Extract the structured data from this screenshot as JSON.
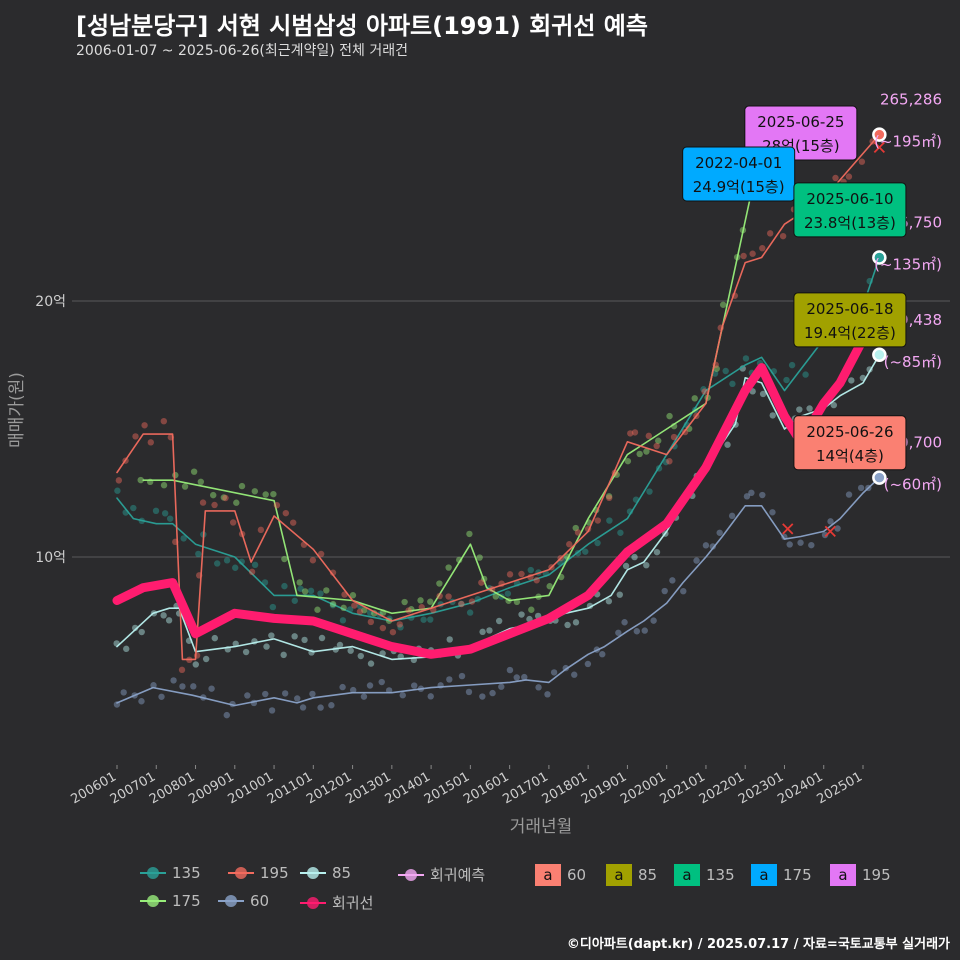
{
  "header": {
    "title": "[성남분당구] 서현 시범삼성 아파트(1991) 회귀선 예측",
    "subtitle": "2006-01-07 ~ 2025-06-26(최근계약일) 전체 거래건",
    "caption": "©디아파트(dapt.kr) / 2025.07.17 / 자료=국토교통부 실거래가"
  },
  "colors": {
    "s135": "#2aa198",
    "s195": "#f26b5e",
    "s85": "#b8f0ee",
    "s175": "#98ee7a",
    "s60": "#8aa2c8",
    "regression": "#ff1c6f",
    "forecast": "#f3a8f3",
    "box60": "#fa8072",
    "box85": "#a1a100",
    "box135": "#00c080",
    "box175": "#00aaff",
    "box195": "#e377f5"
  },
  "legend": {
    "lines": [
      {
        "label": "135",
        "color": "#2aa198"
      },
      {
        "label": "195",
        "color": "#f26b5e"
      },
      {
        "label": "85",
        "color": "#b8f0ee"
      },
      {
        "label": "회귀예측",
        "color": "#f3a8f3"
      },
      {
        "label": "175",
        "color": "#98ee7a"
      },
      {
        "label": "60",
        "color": "#8aa2c8"
      },
      {
        "label": "회귀선",
        "color": "#ff1c6f"
      }
    ],
    "boxes": [
      {
        "glyph": "a",
        "label": "60",
        "color": "#fa8072"
      },
      {
        "glyph": "a",
        "label": "85",
        "color": "#a1a100"
      },
      {
        "glyph": "a",
        "label": "135",
        "color": "#00c080"
      },
      {
        "glyph": "a",
        "label": "175",
        "color": "#00aaff"
      },
      {
        "glyph": "a",
        "label": "195",
        "color": "#e377f5"
      }
    ]
  },
  "chart_data": {
    "type": "line",
    "xlabel": "거래년월",
    "ylabel": "매매가(원)",
    "x_range": [
      "2006-01",
      "2025-07"
    ],
    "y_range_eok": [
      0,
      29
    ],
    "yticks": [
      {
        "value": 10,
        "label": "10억"
      },
      {
        "value": 20,
        "label": "20억"
      }
    ],
    "xticks": [
      "200601",
      "200701",
      "200801",
      "200901",
      "201001",
      "201101",
      "201201",
      "201301",
      "201401",
      "201501",
      "201601",
      "201701",
      "201801",
      "201901",
      "202001",
      "202101",
      "202201",
      "202301",
      "202401",
      "202501"
    ],
    "grid": true,
    "series": [
      {
        "name": "60",
        "color": "#8aa2c8",
        "points": [
          [
            "2006-01",
            4.3
          ],
          [
            "2006-12",
            4.9
          ],
          [
            "2007-12",
            4.6
          ],
          [
            "2009-01",
            4.2
          ],
          [
            "2010-01",
            4.5
          ],
          [
            "2010-08",
            4.3
          ],
          [
            "2011-01",
            4.5
          ],
          [
            "2012-01",
            4.7
          ],
          [
            "2013-01",
            4.7
          ],
          [
            "2014-01",
            4.9
          ],
          [
            "2015-01",
            5.0
          ],
          [
            "2016-01",
            5.1
          ],
          [
            "2016-06",
            5.2
          ],
          [
            "2017-01",
            5.1
          ],
          [
            "2017-06",
            5.6
          ],
          [
            "2018-01",
            6.2
          ],
          [
            "2018-06",
            6.5
          ],
          [
            "2019-01",
            7.1
          ],
          [
            "2019-06",
            7.5
          ],
          [
            "2020-01",
            8.2
          ],
          [
            "2020-06",
            9.0
          ],
          [
            "2021-01",
            10.0
          ],
          [
            "2021-06",
            10.8
          ],
          [
            "2022-01",
            12.0
          ],
          [
            "2022-06",
            12.0
          ],
          [
            "2023-01",
            10.7
          ],
          [
            "2023-06",
            10.8
          ],
          [
            "2024-01",
            11.0
          ],
          [
            "2024-06",
            11.5
          ],
          [
            "2025-01",
            12.5
          ],
          [
            "2025-06",
            13.1
          ]
        ]
      },
      {
        "name": "85",
        "color": "#b8f0ee",
        "points": [
          [
            "2006-01",
            6.5
          ],
          [
            "2006-12",
            7.8
          ],
          [
            "2007-05",
            8.0
          ],
          [
            "2007-08",
            8.0
          ],
          [
            "2008-01",
            6.3
          ],
          [
            "2009-01",
            6.5
          ],
          [
            "2010-01",
            6.8
          ],
          [
            "2011-01",
            6.3
          ],
          [
            "2012-01",
            6.5
          ],
          [
            "2013-01",
            6.0
          ],
          [
            "2014-01",
            6.1
          ],
          [
            "2015-01",
            6.5
          ],
          [
            "2016-01",
            7.2
          ],
          [
            "2017-01",
            7.5
          ],
          [
            "2017-06",
            7.8
          ],
          [
            "2018-01",
            8.0
          ],
          [
            "2018-08",
            8.5
          ],
          [
            "2019-01",
            9.5
          ],
          [
            "2019-06",
            9.8
          ],
          [
            "2020-01",
            11.0
          ],
          [
            "2020-08",
            12.5
          ],
          [
            "2021-01",
            13.5
          ],
          [
            "2021-10",
            15.2
          ],
          [
            "2022-01",
            17.0
          ],
          [
            "2022-06",
            16.8
          ],
          [
            "2023-01",
            15.0
          ],
          [
            "2023-06",
            15.5
          ],
          [
            "2024-01",
            15.8
          ],
          [
            "2024-06",
            16.3
          ],
          [
            "2025-01",
            16.8
          ],
          [
            "2025-06",
            17.9
          ]
        ]
      },
      {
        "name": "135",
        "color": "#2aa198",
        "points": [
          [
            "2006-01",
            12.3
          ],
          [
            "2006-06",
            11.5
          ],
          [
            "2007-01",
            11.3
          ],
          [
            "2007-06",
            11.3
          ],
          [
            "2008-01",
            10.5
          ],
          [
            "2009-01",
            10.0
          ],
          [
            "2010-01",
            8.5
          ],
          [
            "2011-01",
            8.5
          ],
          [
            "2012-01",
            7.8
          ],
          [
            "2013-01",
            7.5
          ],
          [
            "2014-01",
            7.8
          ],
          [
            "2015-01",
            8.2
          ],
          [
            "2016-01",
            8.8
          ],
          [
            "2017-01",
            9.3
          ],
          [
            "2018-01",
            10.5
          ],
          [
            "2019-01",
            11.5
          ],
          [
            "2020-01",
            14.0
          ],
          [
            "2021-01",
            16.5
          ],
          [
            "2022-01",
            17.5
          ],
          [
            "2022-06",
            17.8
          ],
          [
            "2023-01",
            16.5
          ],
          [
            "2024-01",
            18.5
          ],
          [
            "2025-01",
            19.8
          ],
          [
            "2025-06",
            21.7
          ]
        ]
      },
      {
        "name": "175",
        "color": "#98ee7a",
        "points": [
          [
            "2006-09",
            13.0
          ],
          [
            "2007-06",
            13.0
          ],
          [
            "2010-01",
            12.2
          ],
          [
            "2010-08",
            8.5
          ],
          [
            "2012-01",
            8.3
          ],
          [
            "2013-01",
            7.8
          ],
          [
            "2014-01",
            8.0
          ],
          [
            "2015-01",
            10.5
          ],
          [
            "2015-06",
            8.8
          ],
          [
            "2016-01",
            8.3
          ],
          [
            "2017-01",
            8.5
          ],
          [
            "2018-01",
            11.5
          ],
          [
            "2019-01",
            14.0
          ],
          [
            "2020-01",
            15.0
          ],
          [
            "2021-01",
            16.0
          ],
          [
            "2022-04",
            24.9
          ]
        ]
      },
      {
        "name": "195",
        "color": "#f26b5e",
        "points": [
          [
            "2006-01",
            13.3
          ],
          [
            "2006-09",
            14.8
          ],
          [
            "2007-06",
            14.8
          ],
          [
            "2007-09",
            6.0
          ],
          [
            "2008-01",
            6.0
          ],
          [
            "2008-04",
            11.8
          ],
          [
            "2009-01",
            11.8
          ],
          [
            "2009-06",
            9.8
          ],
          [
            "2010-01",
            11.6
          ],
          [
            "2011-01",
            10.3
          ],
          [
            "2012-01",
            8.3
          ],
          [
            "2013-01",
            7.5
          ],
          [
            "2014-01",
            8.0
          ],
          [
            "2015-01",
            8.5
          ],
          [
            "2016-01",
            9.0
          ],
          [
            "2017-01",
            9.5
          ],
          [
            "2018-01",
            11.0
          ],
          [
            "2019-01",
            14.5
          ],
          [
            "2020-01",
            14.0
          ],
          [
            "2021-01",
            16.0
          ],
          [
            "2021-06",
            19.0
          ],
          [
            "2022-01",
            21.5
          ],
          [
            "2022-06",
            21.7
          ],
          [
            "2023-01",
            23.0
          ],
          [
            "2024-01",
            24.0
          ],
          [
            "2025-06",
            26.5
          ]
        ]
      },
      {
        "name": "회귀선",
        "color": "#ff1c6f",
        "points": [
          [
            "2006-01",
            8.3
          ],
          [
            "2006-09",
            8.8
          ],
          [
            "2007-06",
            9.0
          ],
          [
            "2008-01",
            7.0
          ],
          [
            "2009-01",
            7.8
          ],
          [
            "2010-01",
            7.6
          ],
          [
            "2011-01",
            7.5
          ],
          [
            "2012-01",
            7.0
          ],
          [
            "2013-01",
            6.5
          ],
          [
            "2014-01",
            6.2
          ],
          [
            "2015-01",
            6.4
          ],
          [
            "2016-01",
            7.0
          ],
          [
            "2017-01",
            7.6
          ],
          [
            "2018-01",
            8.5
          ],
          [
            "2019-01",
            10.2
          ],
          [
            "2020-01",
            11.3
          ],
          [
            "2021-01",
            13.5
          ],
          [
            "2022-01",
            16.5
          ],
          [
            "2022-06",
            17.4
          ],
          [
            "2023-01",
            15.5
          ],
          [
            "2023-06",
            14.5
          ],
          [
            "2024-01",
            16.0
          ],
          [
            "2024-06",
            16.8
          ],
          [
            "2025-01",
            18.5
          ],
          [
            "2025-07",
            19.8
          ]
        ]
      }
    ],
    "latest_labels": [
      {
        "area": "195",
        "date": "2025-06-25",
        "price": "28억(15층)",
        "color": "#e377f5",
        "x": "2023-06",
        "y": 26.6
      },
      {
        "area": "175",
        "date": "2022-04-01",
        "price": "24.9억(15층)",
        "color": "#00aaff",
        "x": "2021-11",
        "y": 25.0
      },
      {
        "area": "135",
        "date": "2025-06-10",
        "price": "23.8억(13층)",
        "color": "#00c080",
        "x": "2024-09",
        "y": 23.6
      },
      {
        "area": "85",
        "date": "2025-06-18",
        "price": "19.4억(22층)",
        "color": "#a1a100",
        "x": "2024-09",
        "y": 19.3
      },
      {
        "area": "60",
        "date": "2025-06-26",
        "price": "14억(4층)",
        "color": "#fa8072",
        "x": "2024-09",
        "y": 14.5
      }
    ],
    "forecast_labels": [
      {
        "area": "195",
        "value": "265,286",
        "sub": "(~195㎡)",
        "x": "2025-06",
        "y": 26.5
      },
      {
        "area": "135",
        "value": "216,750",
        "sub": "(~135㎡)",
        "x": "2025-06",
        "y": 21.7
      },
      {
        "area": "85",
        "value": "179,438",
        "sub": "(~85㎡)",
        "x": "2025-06",
        "y": 17.9
      },
      {
        "area": "60",
        "value": "130,700",
        "sub": "(~60㎡)",
        "x": "2025-06",
        "y": 13.1
      }
    ]
  }
}
